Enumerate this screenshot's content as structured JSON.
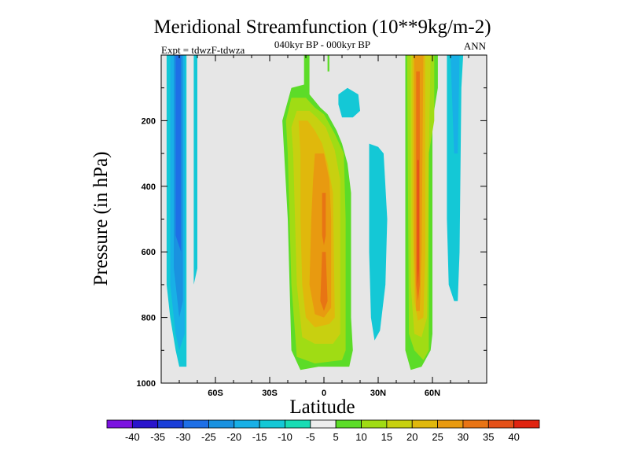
{
  "chart_data": {
    "type": "heatmap",
    "title": "Meridional Streamfunction (10**9kg/m-2)",
    "subtitle": "040kyr BP - 000kyr BP",
    "left_label": "Expt = tdwzF-tdwza",
    "right_label": "ANN",
    "xlabel": "Latitude",
    "ylabel": "Pressure (in hPa)",
    "xlim": [
      -90,
      90
    ],
    "ylim": [
      0,
      1000
    ],
    "y_inverted": true,
    "x_ticks": [
      {
        "value": -60,
        "label": "60S"
      },
      {
        "value": -30,
        "label": "30S"
      },
      {
        "value": 0,
        "label": "0"
      },
      {
        "value": 30,
        "label": "30N"
      },
      {
        "value": 60,
        "label": "60N"
      }
    ],
    "y_ticks": [
      {
        "value": 200,
        "label": "200"
      },
      {
        "value": 400,
        "label": "400"
      },
      {
        "value": 600,
        "label": "600"
      },
      {
        "value": 800,
        "label": "800"
      },
      {
        "value": 1000,
        "label": "1000"
      }
    ],
    "background_color": "#e6e6e6",
    "colorbar": {
      "levels": [
        -40,
        -35,
        -30,
        -25,
        -20,
        -15,
        -10,
        -5,
        5,
        10,
        15,
        20,
        25,
        30,
        35,
        40
      ],
      "colors": [
        "#7b12e0",
        "#2a14cc",
        "#1a3ed8",
        "#1e6fe6",
        "#1a92e0",
        "#18b0e6",
        "#14c8d6",
        "#18dcb4",
        "#ededed",
        "#5cdc28",
        "#a0dc14",
        "#c8d010",
        "#e0b80c",
        "#e89a10",
        "#e87414",
        "#e45018",
        "#e02410"
      ]
    },
    "regions": [
      {
        "level": -10,
        "poly": [
          [
            -87,
            0
          ],
          [
            -76,
            0
          ],
          [
            -76,
            950
          ],
          [
            -80,
            950
          ],
          [
            -82,
            900
          ],
          [
            -85,
            800
          ],
          [
            -87,
            700
          ]
        ]
      },
      {
        "level": -15,
        "poly": [
          [
            -85,
            0
          ],
          [
            -77,
            0
          ],
          [
            -77,
            850
          ],
          [
            -80,
            900
          ],
          [
            -82,
            850
          ],
          [
            -85,
            700
          ]
        ]
      },
      {
        "level": -20,
        "poly": [
          [
            -83,
            0
          ],
          [
            -78,
            0
          ],
          [
            -78,
            750
          ],
          [
            -80,
            800
          ],
          [
            -83,
            650
          ]
        ]
      },
      {
        "level": -25,
        "poly": [
          [
            -82,
            0
          ],
          [
            -79,
            0
          ],
          [
            -79,
            600
          ],
          [
            -82,
            550
          ]
        ]
      },
      {
        "level": -10,
        "poly": [
          [
            -72,
            0
          ],
          [
            -70,
            0
          ],
          [
            -70,
            650
          ],
          [
            -72,
            700
          ]
        ]
      },
      {
        "level": 5,
        "poly": [
          [
            -11,
            0
          ],
          [
            -8,
            0
          ],
          [
            -8,
            120
          ],
          [
            -2,
            160
          ],
          [
            2,
            180
          ],
          [
            7,
            230
          ],
          [
            10,
            270
          ],
          [
            13,
            330
          ],
          [
            15,
            420
          ],
          [
            15,
            800
          ],
          [
            16,
            900
          ],
          [
            14,
            950
          ],
          [
            5,
            950
          ],
          [
            -3,
            950
          ],
          [
            -13,
            960
          ],
          [
            -18,
            900
          ],
          [
            -19,
            700
          ],
          [
            -20,
            500
          ],
          [
            -22,
            300
          ],
          [
            -23,
            200
          ],
          [
            -18,
            100
          ],
          [
            -11,
            90
          ]
        ]
      },
      {
        "level": 5,
        "poly": [
          [
            2,
            0
          ],
          [
            3,
            0
          ],
          [
            3,
            50
          ],
          [
            2,
            50
          ]
        ]
      },
      {
        "level": 10,
        "poly": [
          [
            -18,
            130
          ],
          [
            -10,
            130
          ],
          [
            -5,
            160
          ],
          [
            0,
            180
          ],
          [
            6,
            240
          ],
          [
            11,
            300
          ],
          [
            12,
            500
          ],
          [
            12,
            900
          ],
          [
            10,
            930
          ],
          [
            -5,
            940
          ],
          [
            -15,
            920
          ],
          [
            -18,
            700
          ],
          [
            -19,
            500
          ],
          [
            -20,
            300
          ],
          [
            -21,
            200
          ]
        ]
      },
      {
        "level": 15,
        "poly": [
          [
            -15,
            170
          ],
          [
            -8,
            170
          ],
          [
            -4,
            190
          ],
          [
            1,
            220
          ],
          [
            6,
            290
          ],
          [
            9,
            380
          ],
          [
            9,
            850
          ],
          [
            5,
            880
          ],
          [
            -5,
            880
          ],
          [
            -12,
            860
          ],
          [
            -15,
            700
          ],
          [
            -16,
            500
          ],
          [
            -17,
            300
          ],
          [
            -18,
            220
          ]
        ]
      },
      {
        "level": 20,
        "poly": [
          [
            -14,
            200
          ],
          [
            -9,
            200
          ],
          [
            -5,
            230
          ],
          [
            -1,
            270
          ],
          [
            2,
            330
          ],
          [
            5,
            420
          ],
          [
            6,
            800
          ],
          [
            3,
            820
          ],
          [
            -5,
            830
          ],
          [
            -10,
            800
          ],
          [
            -12,
            700
          ],
          [
            -13,
            500
          ],
          [
            -13,
            300
          ]
        ]
      },
      {
        "level": 25,
        "poly": [
          [
            -5,
            300
          ],
          [
            0,
            300
          ],
          [
            3,
            380
          ],
          [
            4,
            500
          ],
          [
            4,
            770
          ],
          [
            0,
            800
          ],
          [
            -5,
            790
          ],
          [
            -8,
            700
          ],
          [
            -7,
            500
          ],
          [
            -6,
            380
          ]
        ]
      },
      {
        "level": 30,
        "poly": [
          [
            -1,
            420
          ],
          [
            1,
            420
          ],
          [
            1,
            550
          ],
          [
            0,
            580
          ],
          [
            -1,
            550
          ]
        ]
      },
      {
        "level": 30,
        "poly": [
          [
            -1,
            600
          ],
          [
            1,
            600
          ],
          [
            2,
            750
          ],
          [
            0,
            780
          ],
          [
            -2,
            750
          ]
        ]
      },
      {
        "level": -10,
        "poly": [
          [
            8,
            120
          ],
          [
            13,
            100
          ],
          [
            19,
            120
          ],
          [
            20,
            170
          ],
          [
            16,
            190
          ],
          [
            10,
            190
          ],
          [
            8,
            150
          ]
        ]
      },
      {
        "level": -10,
        "poly": [
          [
            25,
            270
          ],
          [
            30,
            280
          ],
          [
            33,
            300
          ],
          [
            35,
            500
          ],
          [
            34,
            700
          ],
          [
            31,
            840
          ],
          [
            28,
            870
          ],
          [
            26,
            800
          ],
          [
            25,
            600
          ]
        ]
      },
      {
        "level": 5,
        "poly": [
          [
            45,
            0
          ],
          [
            63,
            0
          ],
          [
            63,
            100
          ],
          [
            60,
            200
          ],
          [
            60,
            850
          ],
          [
            59,
            900
          ],
          [
            54,
            950
          ],
          [
            48,
            960
          ],
          [
            45,
            900
          ]
        ]
      },
      {
        "level": 10,
        "poly": [
          [
            46,
            0
          ],
          [
            61,
            0
          ],
          [
            61,
            200
          ],
          [
            58,
            300
          ],
          [
            58,
            900
          ],
          [
            55,
            930
          ],
          [
            50,
            900
          ],
          [
            47,
            850
          ]
        ]
      },
      {
        "level": 15,
        "poly": [
          [
            48,
            0
          ],
          [
            59,
            0
          ],
          [
            58,
            300
          ],
          [
            57,
            800
          ],
          [
            54,
            860
          ],
          [
            50,
            850
          ],
          [
            48,
            700
          ]
        ]
      },
      {
        "level": 20,
        "poly": [
          [
            49,
            0
          ],
          [
            56,
            0
          ],
          [
            56,
            600
          ],
          [
            55,
            800
          ],
          [
            52,
            810
          ],
          [
            50,
            750
          ],
          [
            49,
            500
          ]
        ]
      },
      {
        "level": 25,
        "poly": [
          [
            50,
            0
          ],
          [
            55,
            0
          ],
          [
            54,
            600
          ],
          [
            53,
            780
          ],
          [
            51,
            780
          ],
          [
            50,
            600
          ]
        ]
      },
      {
        "level": 30,
        "poly": [
          [
            51,
            50
          ],
          [
            53,
            50
          ],
          [
            53,
            350
          ],
          [
            53,
            700
          ],
          [
            52,
            750
          ],
          [
            51,
            700
          ],
          [
            51,
            300
          ]
        ]
      },
      {
        "level": 35,
        "poly": [
          [
            51.5,
            320
          ],
          [
            52.5,
            320
          ],
          [
            52.5,
            650
          ],
          [
            52,
            700
          ],
          [
            51.5,
            650
          ]
        ]
      },
      {
        "level": -10,
        "poly": [
          [
            68,
            0
          ],
          [
            77,
            0
          ],
          [
            76,
            100
          ],
          [
            75,
            600
          ],
          [
            74,
            750
          ],
          [
            72,
            750
          ],
          [
            69,
            700
          ],
          [
            68,
            500
          ]
        ]
      },
      {
        "level": -15,
        "poly": [
          [
            70,
            0
          ],
          [
            75,
            0
          ],
          [
            74,
            300
          ],
          [
            72,
            300
          ],
          [
            71,
            150
          ]
        ]
      }
    ]
  }
}
